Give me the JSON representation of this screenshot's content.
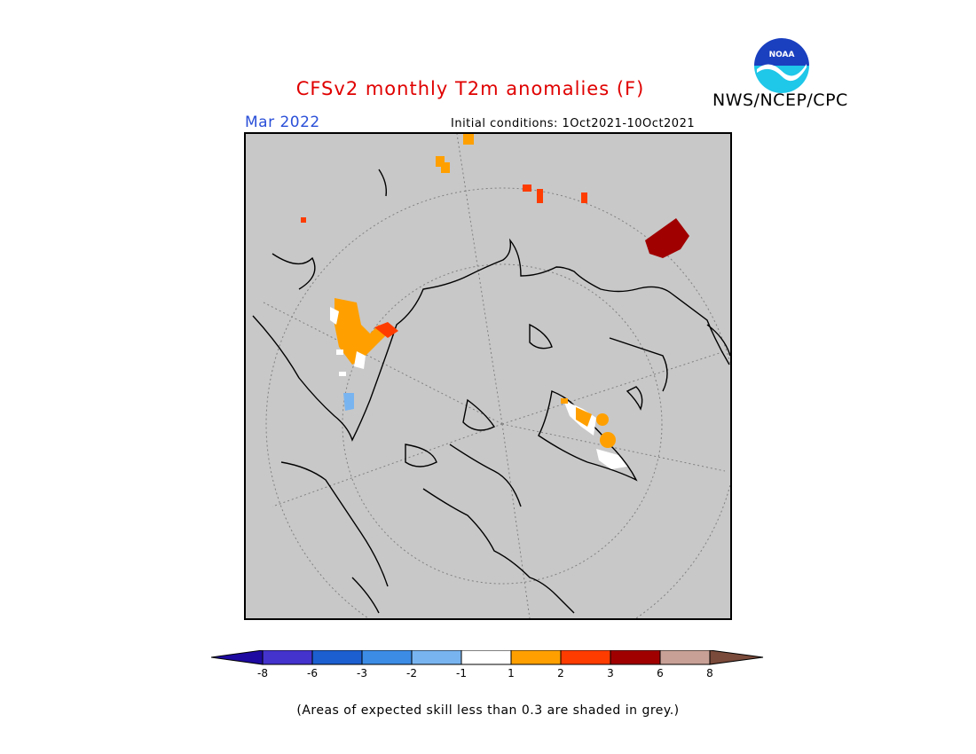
{
  "title": "CFSv2 monthly T2m anomalies (F)",
  "agency": "NWS/NCEP/CPC",
  "logo_text": "NOAA",
  "month": "Mar 2022",
  "initial_conditions": "Initial conditions: 1Oct2021-10Oct2021",
  "skill_note": "(Areas of expected skill less than 0.3 are shaded in grey.)",
  "map": {
    "background_color": "#c8c8c8",
    "projection": "north polar stereographic"
  },
  "colorbar": {
    "ticks": [
      "-8",
      "-6",
      "-3",
      "-2",
      "-1",
      "1",
      "2",
      "3",
      "6",
      "8"
    ],
    "colors": [
      "#1e0aa0",
      "#4433cc",
      "#1c5fd0",
      "#3c8ce6",
      "#78b4f0",
      "#ffffff",
      "#ffa000",
      "#ff3c00",
      "#a00000",
      "#c8a096",
      "#7a4a3a"
    ]
  }
}
